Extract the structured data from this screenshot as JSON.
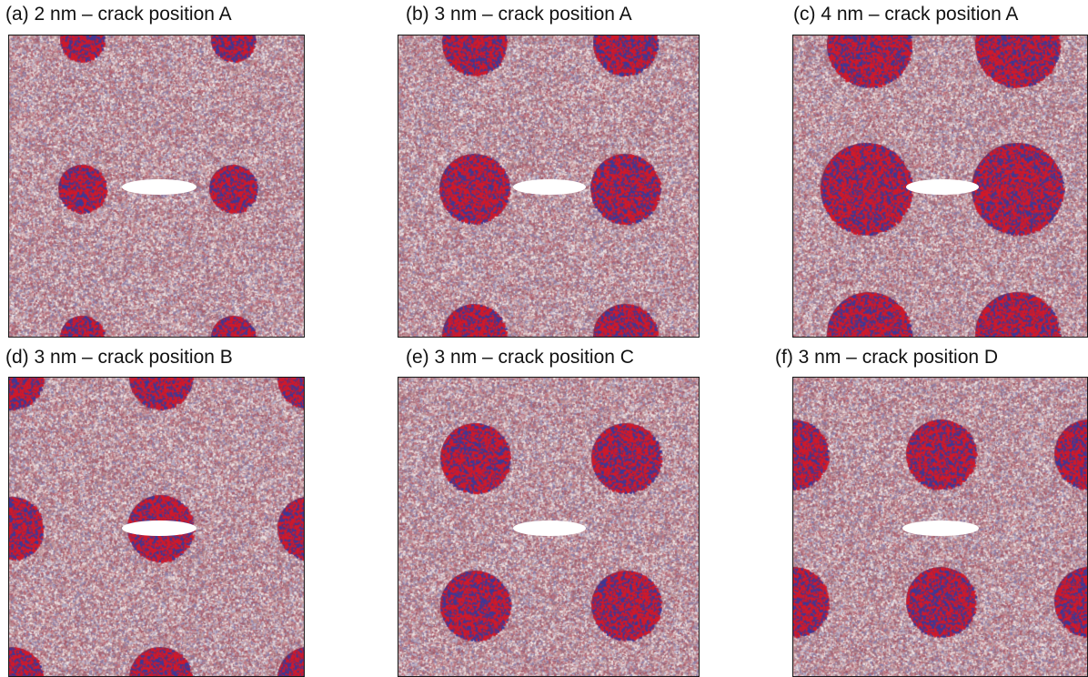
{
  "figure": {
    "panels": [
      {
        "caption": "(a) 2 nm – crack position A",
        "particle_size": "2 nm",
        "crack_position": "A"
      },
      {
        "caption": "(b) 3 nm – crack position A",
        "particle_size": "3 nm",
        "crack_position": "A"
      },
      {
        "caption": "(c) 4 nm – crack position A",
        "particle_size": "4 nm",
        "crack_position": "A"
      },
      {
        "caption": "(d) 3 nm – crack position B",
        "particle_size": "3 nm",
        "crack_position": "B"
      },
      {
        "caption": "(e) 3 nm – crack position C",
        "particle_size": "3 nm",
        "crack_position": "C"
      },
      {
        "caption": "(f) 3 nm – crack position D",
        "particle_size": "3 nm",
        "crack_position": "D"
      }
    ],
    "colors": {
      "matrix": "#b98f93",
      "particle": "#7a2a4e",
      "atom_red": "#d11a2a",
      "atom_blue": "#3a3a9a",
      "crack": "#ffffff",
      "frame": "#1a1a1a"
    }
  }
}
